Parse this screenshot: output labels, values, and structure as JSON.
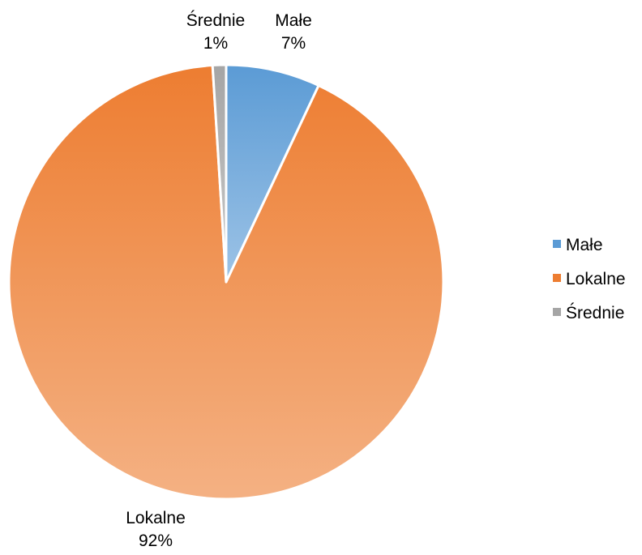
{
  "chart_data": {
    "type": "pie",
    "title": "",
    "slices": [
      {
        "label": "Małe",
        "value": 7,
        "value_label": "7%",
        "color": "#5B9BD5",
        "color_light": "#9DC3E6"
      },
      {
        "label": "Lokalne",
        "value": 92,
        "value_label": "92%",
        "color": "#ED7D31",
        "color_light": "#F4B183"
      },
      {
        "label": "Średnie",
        "value": 1,
        "value_label": "1%",
        "color": "#A5A5A5",
        "color_light": "#C9C9C9"
      }
    ],
    "start_angle": "12 o'clock, clockwise",
    "legend": {
      "position": "right",
      "entries": [
        "Małe",
        "Lokalne",
        "Średnie"
      ]
    },
    "data_labels": "outside, category name and percentage"
  }
}
